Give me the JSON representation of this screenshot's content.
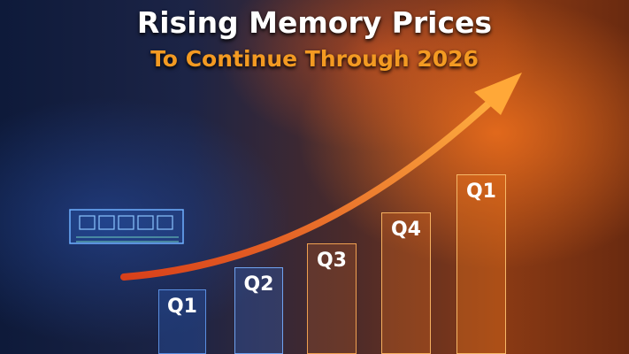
{
  "title": "Rising Memory Prices",
  "subtitle": "To Continue Through 2026",
  "colors": {
    "title": "#ffffff",
    "subtitle": "#f39a22",
    "arrow": "#f07a1a"
  },
  "bars": [
    {
      "label": "Q1",
      "color": "#5a8ee0"
    },
    {
      "label": "Q2",
      "color": "#6fa2ef"
    },
    {
      "label": "Q3",
      "color": "#f0a050"
    },
    {
      "label": "Q4",
      "color": "#f6b060"
    },
    {
      "label": "Q1",
      "color": "#f6b868"
    }
  ],
  "icons": {
    "memory": "memory-module-icon",
    "arrow": "rising-arrow-icon"
  }
}
